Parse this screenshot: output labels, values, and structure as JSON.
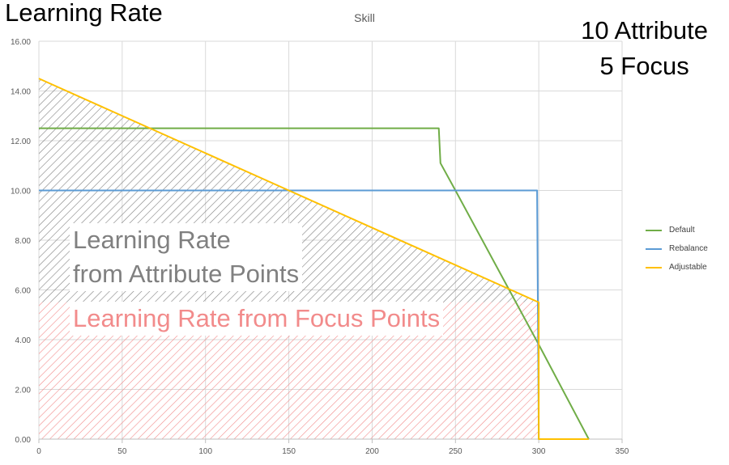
{
  "header": {
    "title": "Learning Rate",
    "note_line1": "10 Attribute",
    "note_line2": "5 Focus"
  },
  "annotations": {
    "attribute_line1": "Learning Rate",
    "attribute_line2": "from Attribute Points",
    "focus": "Learning Rate from Focus Points"
  },
  "colors": {
    "default": "#70ad47",
    "rebalance": "#5b9bd5",
    "adjustable": "#ffc000",
    "attribute_hatch": "#808080",
    "focus_hatch": "#f28b8b",
    "grid": "#d9d9d9"
  },
  "chart_data": {
    "type": "line",
    "title": "Skill",
    "xlim": [
      0,
      350
    ],
    "ylim": [
      0,
      16
    ],
    "xticks": [
      0,
      50,
      100,
      150,
      200,
      250,
      300,
      350
    ],
    "yticks": [
      "0.00",
      "2.00",
      "4.00",
      "6.00",
      "8.00",
      "10.00",
      "12.00",
      "14.00",
      "16.00"
    ],
    "grid": true,
    "legend_position": "right",
    "series": [
      {
        "name": "Default",
        "color_key": "default",
        "points": [
          [
            0,
            12.5
          ],
          [
            240,
            12.5
          ],
          [
            241,
            11.1
          ],
          [
            250,
            10.0
          ],
          [
            300,
            3.8
          ],
          [
            330,
            0
          ]
        ]
      },
      {
        "name": "Rebalance",
        "color_key": "rebalance",
        "points": [
          [
            0,
            10.0
          ],
          [
            299,
            10.0
          ],
          [
            300,
            0
          ],
          [
            330,
            0
          ]
        ]
      },
      {
        "name": "Adjustable",
        "color_key": "adjustable",
        "points": [
          [
            0,
            14.5
          ],
          [
            150,
            10.0
          ],
          [
            300,
            5.5
          ],
          [
            300,
            0
          ],
          [
            330,
            0
          ]
        ]
      }
    ],
    "shaded_regions": [
      {
        "name": "attribute",
        "color_key": "attribute_hatch",
        "polygon": [
          [
            0,
            14.5
          ],
          [
            300,
            5.5
          ],
          [
            0,
            5.5
          ]
        ]
      },
      {
        "name": "focus",
        "color_key": "focus_hatch",
        "polygon": [
          [
            0,
            5.5
          ],
          [
            300,
            5.5
          ],
          [
            300,
            0
          ],
          [
            0,
            0
          ]
        ]
      }
    ]
  }
}
